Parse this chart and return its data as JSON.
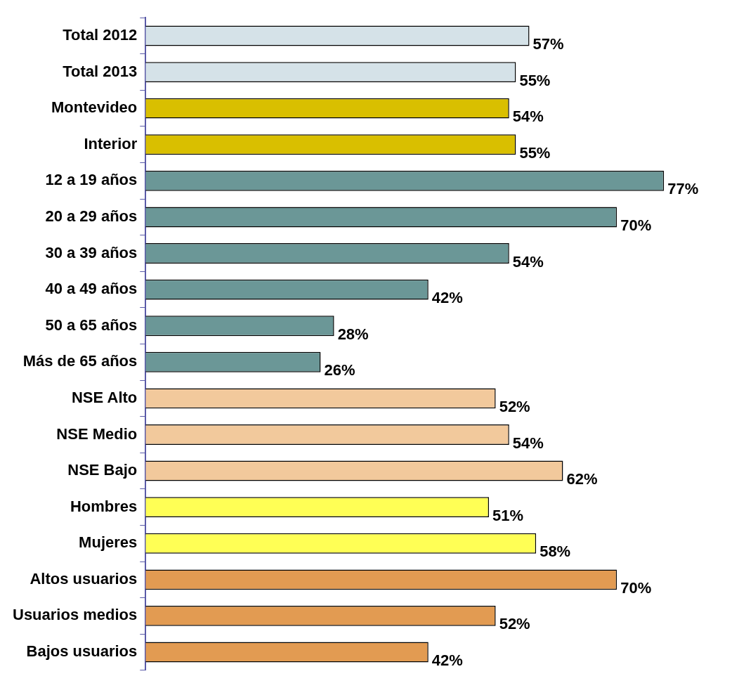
{
  "chart_data": {
    "type": "bar",
    "orientation": "horizontal",
    "categories": [
      "Total 2012",
      "Total 2013",
      "Montevideo",
      "Interior",
      "12 a 19 años",
      "20 a 29 años",
      "30 a 39 años",
      "40 a 49 años",
      "50 a 65 años",
      "Más de 65 años",
      "NSE Alto",
      "NSE Medio",
      "NSE Bajo",
      "Hombres",
      "Mujeres",
      "Altos usuarios",
      "Usuarios medios",
      "Bajos usuarios"
    ],
    "values": [
      57,
      55,
      54,
      55,
      77,
      70,
      54,
      42,
      28,
      26,
      52,
      54,
      62,
      51,
      58,
      70,
      52,
      42
    ],
    "colors": [
      "#d5e2e8",
      "#d5e2e8",
      "#d9bf00",
      "#d9bf00",
      "#6b9797",
      "#6b9797",
      "#6b9797",
      "#6b9797",
      "#6b9797",
      "#6b9797",
      "#f2c99c",
      "#f2c99c",
      "#f2c99c",
      "#ffff55",
      "#ffff55",
      "#e29b52",
      "#e29b52",
      "#e29b52"
    ],
    "value_labels": [
      "57%",
      "55%",
      "54%",
      "55%",
      "77%",
      "70%",
      "54%",
      "42%",
      "28%",
      "26%",
      "52%",
      "54%",
      "62%",
      "51%",
      "58%",
      "70%",
      "52%",
      "42%"
    ],
    "tick_labels": "y"
  }
}
